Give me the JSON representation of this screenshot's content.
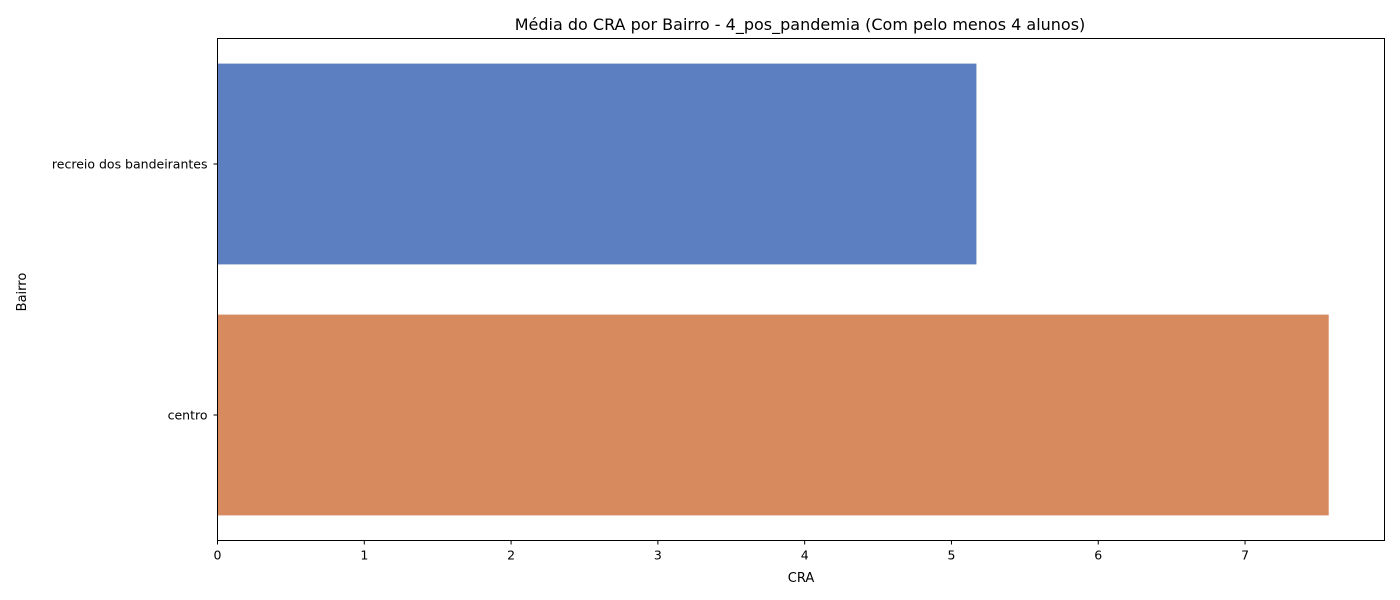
{
  "chart_data": {
    "type": "bar",
    "orientation": "horizontal",
    "title": "Média do CRA por Bairro - 4_pos_pandemia (Com pelo menos 4 alunos)",
    "xlabel": "CRA",
    "ylabel": "Bairro",
    "categories": [
      "recreio dos bandeirantes",
      "centro"
    ],
    "values": [
      5.17,
      7.57
    ],
    "colors": [
      "#5b7fc1",
      "#d88a5f"
    ],
    "xlim": [
      0,
      7.95
    ],
    "xticks": [
      0,
      1,
      2,
      3,
      4,
      5,
      6,
      7
    ],
    "grid": false,
    "legend": "none"
  }
}
